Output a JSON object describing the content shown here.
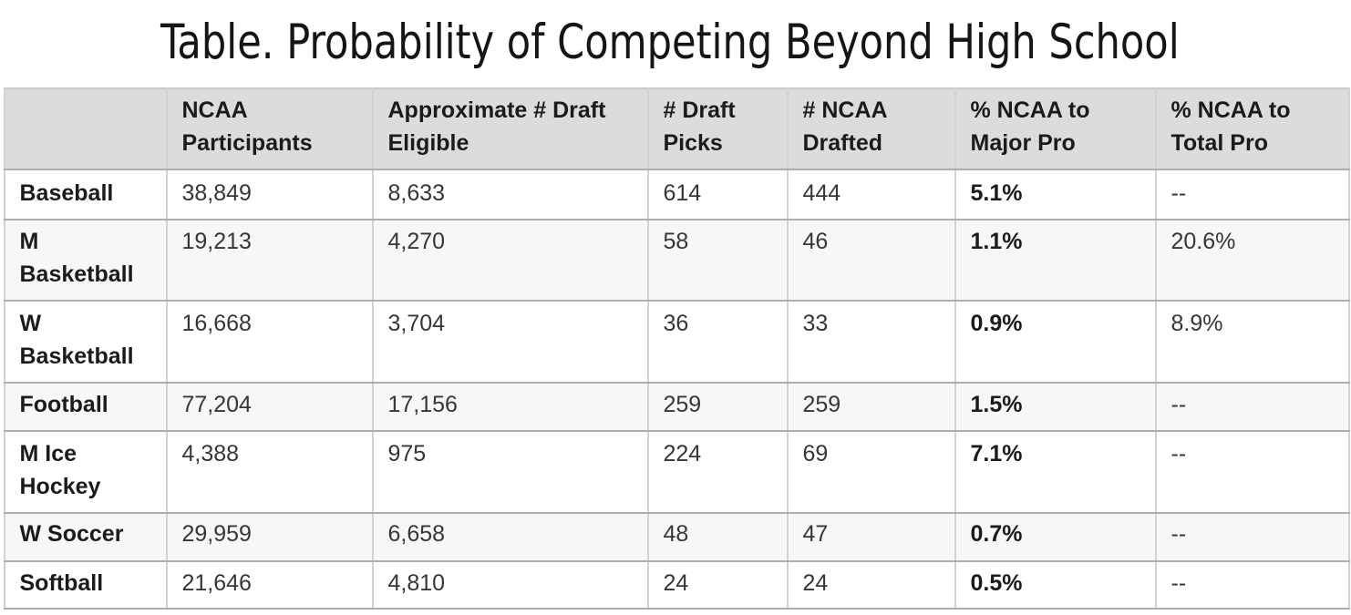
{
  "title": "Table. Probability of Competing Beyond High School",
  "table": {
    "headers": [
      "",
      "NCAA Participants",
      "Approximate # Draft Eligible",
      "# Draft Picks",
      "# NCAA Drafted",
      "% NCAA to Major Pro",
      "% NCAA to Total Pro"
    ],
    "rows": [
      {
        "sport": "Baseball",
        "ncaa_participants": "38,849",
        "approx_draft_eligible": "8,633",
        "draft_picks": "614",
        "ncaa_drafted": "444",
        "pct_ncaa_major_pro": "5.1%",
        "pct_ncaa_total_pro": "--"
      },
      {
        "sport": "M Basketball",
        "ncaa_participants": "19,213",
        "approx_draft_eligible": "4,270",
        "draft_picks": "58",
        "ncaa_drafted": "46",
        "pct_ncaa_major_pro": "1.1%",
        "pct_ncaa_total_pro": "20.6%"
      },
      {
        "sport": "W Basketball",
        "ncaa_participants": "16,668",
        "approx_draft_eligible": "3,704",
        "draft_picks": "36",
        "ncaa_drafted": "33",
        "pct_ncaa_major_pro": "0.9%",
        "pct_ncaa_total_pro": "8.9%"
      },
      {
        "sport": "Football",
        "ncaa_participants": "77,204",
        "approx_draft_eligible": "17,156",
        "draft_picks": "259",
        "ncaa_drafted": "259",
        "pct_ncaa_major_pro": "1.5%",
        "pct_ncaa_total_pro": "--"
      },
      {
        "sport": "M Ice Hockey",
        "ncaa_participants": "4,388",
        "approx_draft_eligible": "975",
        "draft_picks": "224",
        "ncaa_drafted": "69",
        "pct_ncaa_major_pro": "7.1%",
        "pct_ncaa_total_pro": "--"
      },
      {
        "sport": "W Soccer",
        "ncaa_participants": "29,959",
        "approx_draft_eligible": "6,658",
        "draft_picks": "48",
        "ncaa_drafted": "47",
        "pct_ncaa_major_pro": "0.7%",
        "pct_ncaa_total_pro": "--"
      },
      {
        "sport": "Softball",
        "ncaa_participants": "21,646",
        "approx_draft_eligible": "4,810",
        "draft_picks": "24",
        "ncaa_drafted": "24",
        "pct_ncaa_major_pro": "0.5%",
        "pct_ncaa_total_pro": "--"
      }
    ]
  },
  "colors": {
    "header_background": "#dcdcdc",
    "alt_row_background": "#f7f7f7",
    "horizontal_border": "#aeaeae",
    "vertical_border": "#d2d2d2",
    "bold_text": "#1b1b1b",
    "regular_text": "#363636",
    "title_text": "#151515"
  }
}
